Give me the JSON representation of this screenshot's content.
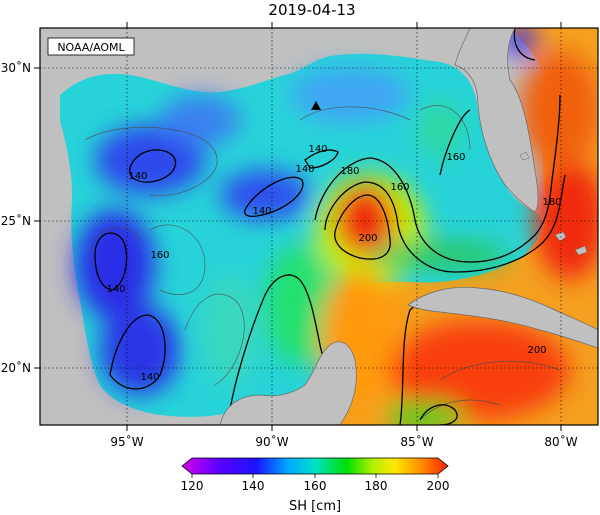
{
  "title": "2019-04-13",
  "credit": "NOAA/AOML",
  "map": {
    "lon_ticks": [
      {
        "value": -95,
        "label": "95˚W"
      },
      {
        "value": -90,
        "label": "90˚W"
      },
      {
        "value": -85,
        "label": "85˚W"
      },
      {
        "value": -80,
        "label": "80˚W"
      }
    ],
    "lat_ticks": [
      {
        "value": 30,
        "label": "30˚N"
      },
      {
        "value": 25,
        "label": "25˚N"
      },
      {
        "value": 20,
        "label": "20˚N"
      }
    ],
    "contour_labels": [
      "140",
      "140",
      "140",
      "140",
      "140",
      "140",
      "160",
      "160",
      "160",
      "180",
      "180",
      "200",
      "200"
    ],
    "marker": "triangle",
    "colors": {
      "land": "#c0c0c0",
      "low": "#2a1ee6",
      "mid": "#19e0d2",
      "high": "#f21c0c"
    }
  },
  "colorbar": {
    "ticks": [
      "120",
      "140",
      "160",
      "180",
      "200"
    ],
    "label": "SH [cm]",
    "colors": [
      "#d400e8",
      "#1a14ff",
      "#00aaff",
      "#00e0c8",
      "#00e000",
      "#b6f000",
      "#ffe800",
      "#ff8c00",
      "#ff2000"
    ]
  }
}
